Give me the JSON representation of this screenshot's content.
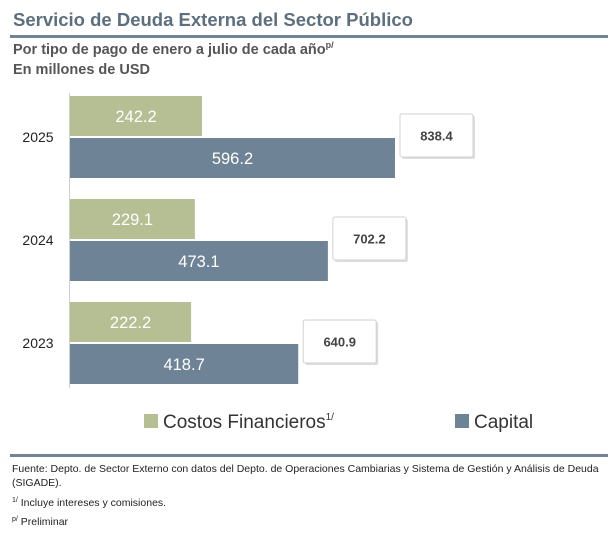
{
  "header": {
    "title": "Servicio de Deuda Externa del Sector Público",
    "subtitle": "Por tipo de pago de enero a julio de cada año",
    "subtitle_sup": "p/",
    "units": "En millones de USD"
  },
  "chart_data": {
    "type": "bar",
    "orientation": "horizontal",
    "stacked": false,
    "categories": [
      "2025",
      "2024",
      "2023"
    ],
    "series": [
      {
        "name": "Costos Financieros",
        "name_sup": "1/",
        "color": "#b5bf93",
        "values": [
          242.2,
          229.1,
          222.2
        ]
      },
      {
        "name": "Capital",
        "color": "#6e8496",
        "values": [
          596.2,
          473.1,
          418.7
        ]
      }
    ],
    "totals": [
      838.4,
      702.2,
      640.9
    ],
    "xlim": [
      0,
      838.4
    ],
    "legend_position": "bottom",
    "grid": false
  },
  "footer": {
    "source": "Fuente: Depto. de Sector Externo con datos del Depto. de Operaciones Cambiarias y Sistema de Gestión y Análisis de Deuda (SIGADE).",
    "note1_mark": "1/",
    "note1": "Incluye intereses y comisiones.",
    "note2_mark": "p/",
    "note2": "Preliminar"
  }
}
